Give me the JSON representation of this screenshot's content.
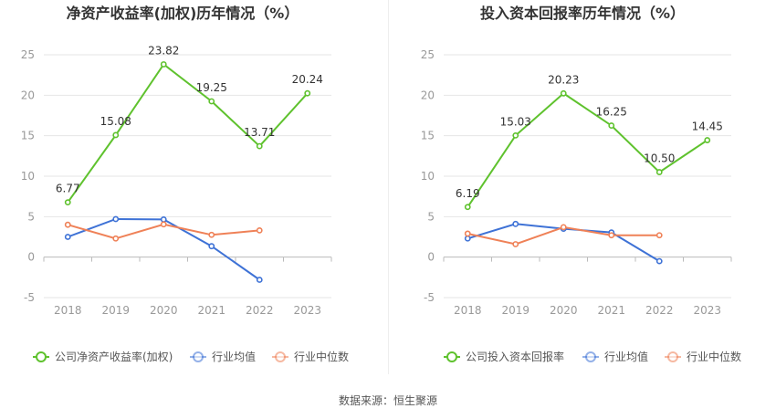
{
  "colors": {
    "company": "#5fc22e",
    "industry_avg": "#3e72d6",
    "industry_median": "#ef8157",
    "grid": "#e6e6e6",
    "axis": "#bbbbbb",
    "tick_text": "#999999",
    "title_text": "#333333",
    "label_text": "#333333",
    "legend_text": "#555555"
  },
  "footer": {
    "source": "数据来源：恒生聚源"
  },
  "chart_data": [
    {
      "type": "line",
      "title": "净资产收益率(加权)历年情况（%）",
      "categories": [
        "2018",
        "2019",
        "2020",
        "2021",
        "2022",
        "2023"
      ],
      "ylim": [
        -5,
        25
      ],
      "yticks": [
        25,
        20,
        15,
        10,
        5,
        0,
        -5
      ],
      "grid": true,
      "legend_position": "bottom",
      "series": [
        {
          "name": "公司净资产收益率(加权)",
          "color_key": "company",
          "values": [
            6.77,
            15.08,
            23.82,
            19.25,
            13.71,
            20.24
          ],
          "labels": [
            "6.77",
            "15.08",
            "23.82",
            "19.25",
            "13.71",
            "20.24"
          ]
        },
        {
          "name": "行业均值",
          "color_key": "industry_avg",
          "values": [
            2.5,
            4.7,
            4.65,
            1.35,
            -2.8,
            null
          ]
        },
        {
          "name": "行业中位数",
          "color_key": "industry_median",
          "values": [
            4.0,
            2.3,
            4.05,
            2.75,
            3.3,
            null
          ]
        }
      ]
    },
    {
      "type": "line",
      "title": "投入资本回报率历年情况（%）",
      "categories": [
        "2018",
        "2019",
        "2020",
        "2021",
        "2022",
        "2023"
      ],
      "ylim": [
        -5,
        25
      ],
      "yticks": [
        25,
        20,
        15,
        10,
        5,
        0,
        -5
      ],
      "grid": true,
      "legend_position": "bottom",
      "series": [
        {
          "name": "公司投入资本回报率",
          "color_key": "company",
          "values": [
            6.19,
            15.03,
            20.23,
            16.25,
            10.5,
            14.45
          ],
          "labels": [
            "6.19",
            "15.03",
            "20.23",
            "16.25",
            "10.50",
            "14.45"
          ]
        },
        {
          "name": "行业均值",
          "color_key": "industry_avg",
          "values": [
            2.3,
            4.1,
            3.5,
            3.05,
            -0.5,
            null
          ]
        },
        {
          "name": "行业中位数",
          "color_key": "industry_median",
          "values": [
            2.9,
            1.6,
            3.7,
            2.7,
            2.7,
            null
          ]
        }
      ]
    }
  ]
}
